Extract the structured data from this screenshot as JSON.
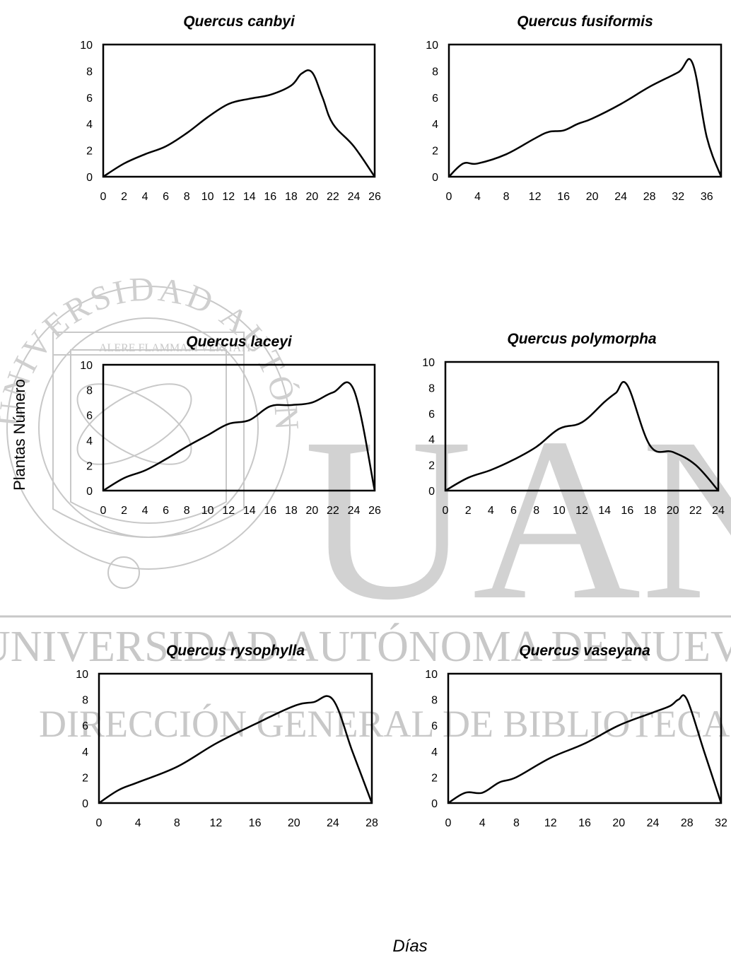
{
  "figure": {
    "ylabel": "Plantas Número",
    "xlabel": "Días"
  },
  "watermark": {
    "university_line": "UNIVERSIDAD AUTÓNOMA DE NUEVO LEÓN",
    "directorate_line": "DIRECCIÓN GENERAL DE BIBLIOTECAS",
    "monogram": "UANL",
    "seal_motto": "ALERE FLAMMAM VERITATIS",
    "seal_ring": "UNIVERSIDAD AUTÓNOMA DE NUEVO LEÓN"
  },
  "colors": {
    "line": "#000000",
    "watermark": "#c8c8c8",
    "background": "#ffffff"
  },
  "chart_data": [
    {
      "type": "line",
      "title": "Quercus canbyi",
      "xlim": [
        0,
        26
      ],
      "ylim": [
        0,
        10
      ],
      "xticks": [
        0,
        2,
        4,
        6,
        8,
        10,
        12,
        14,
        16,
        18,
        20,
        22,
        24,
        26
      ],
      "yticks": [
        0,
        2,
        4,
        6,
        8,
        10
      ],
      "x": [
        0,
        2,
        4,
        6,
        8,
        10,
        12,
        14,
        16,
        18,
        19,
        20,
        21,
        22,
        24,
        26
      ],
      "y": [
        0,
        1,
        1.7,
        2.3,
        3.3,
        4.5,
        5.5,
        5.9,
        6.2,
        6.9,
        7.8,
        7.9,
        6,
        4,
        2.3,
        0
      ]
    },
    {
      "type": "line",
      "title": "Quercus fusiformis",
      "xlim": [
        0,
        38
      ],
      "ylim": [
        0,
        10
      ],
      "xticks": [
        0,
        4,
        8,
        12,
        16,
        20,
        24,
        28,
        32,
        36
      ],
      "yticks": [
        0,
        2,
        4,
        6,
        8,
        10
      ],
      "x": [
        0,
        2,
        4,
        8,
        12,
        14,
        16,
        18,
        20,
        24,
        28,
        32,
        34,
        36,
        38
      ],
      "y": [
        0,
        1,
        1,
        1.7,
        2.9,
        3.4,
        3.5,
        4,
        4.4,
        5.5,
        6.8,
        7.9,
        8.6,
        3,
        0
      ]
    },
    {
      "type": "line",
      "title": "Quercus laceyi",
      "xlim": [
        0,
        26
      ],
      "ylim": [
        0,
        10
      ],
      "xticks": [
        0,
        2,
        4,
        6,
        8,
        10,
        12,
        14,
        16,
        18,
        20,
        22,
        24,
        26
      ],
      "yticks": [
        0,
        2,
        4,
        6,
        8,
        10
      ],
      "x": [
        0,
        2,
        4,
        6,
        8,
        10,
        12,
        14,
        16,
        18,
        20,
        22,
        24,
        26
      ],
      "y": [
        0,
        1,
        1.6,
        2.5,
        3.5,
        4.4,
        5.3,
        5.6,
        6.7,
        6.8,
        7,
        7.8,
        8,
        0
      ]
    },
    {
      "type": "line",
      "title": "Quercus polymorpha",
      "xlim": [
        0,
        24
      ],
      "ylim": [
        0,
        10
      ],
      "xticks": [
        0,
        2,
        4,
        6,
        8,
        10,
        12,
        14,
        16,
        18,
        20,
        22,
        24
      ],
      "yticks": [
        0,
        2,
        4,
        6,
        8,
        10
      ],
      "x": [
        0,
        2,
        4,
        6,
        8,
        10,
        12,
        14,
        15,
        16,
        18,
        20,
        22,
        24
      ],
      "y": [
        0,
        1,
        1.6,
        2.4,
        3.4,
        4.8,
        5.3,
        6.9,
        7.6,
        8.2,
        3.5,
        3,
        2,
        0
      ]
    },
    {
      "type": "line",
      "title": "Quercus rysophylla",
      "xlim": [
        0,
        28
      ],
      "ylim": [
        0,
        10
      ],
      "xticks": [
        0,
        4,
        8,
        12,
        16,
        20,
        24,
        28
      ],
      "yticks": [
        0,
        2,
        4,
        6,
        8,
        10
      ],
      "x": [
        0,
        2,
        4,
        8,
        12,
        16,
        20,
        22,
        24,
        26,
        28
      ],
      "y": [
        0,
        1,
        1.6,
        2.8,
        4.6,
        6.1,
        7.5,
        7.8,
        8,
        4,
        0
      ]
    },
    {
      "type": "line",
      "title": "Quercus vaseyana",
      "xlim": [
        0,
        32
      ],
      "ylim": [
        0,
        10
      ],
      "xticks": [
        0,
        4,
        8,
        12,
        16,
        20,
        24,
        28,
        32
      ],
      "yticks": [
        0,
        2,
        4,
        6,
        8,
        10
      ],
      "x": [
        0,
        2,
        4,
        6,
        8,
        12,
        16,
        20,
        24,
        26,
        27,
        28,
        30,
        32
      ],
      "y": [
        0,
        0.8,
        0.8,
        1.6,
        2,
        3.5,
        4.6,
        6,
        7,
        7.5,
        8,
        8,
        4,
        0
      ]
    }
  ]
}
